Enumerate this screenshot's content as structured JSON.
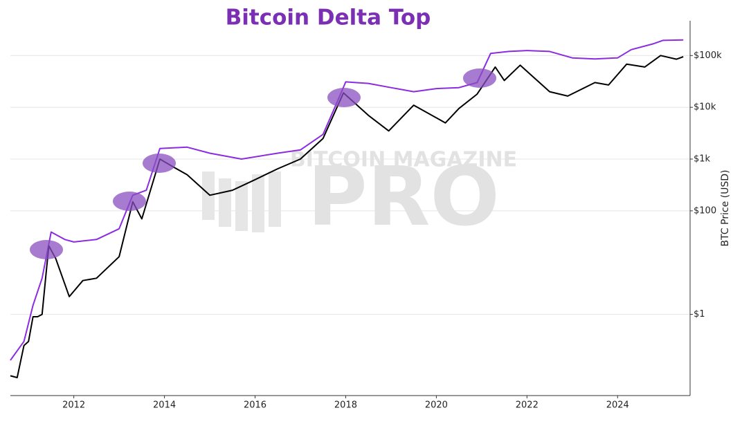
{
  "chart_data": {
    "type": "line",
    "title": "Bitcoin Delta Top",
    "watermark": [
      "BITCOIN MAGAZINE",
      "PRO"
    ],
    "y_label": "BTC Price (USD)",
    "log_y": true,
    "grid": true,
    "xlim": [
      2010.6,
      2025.6
    ],
    "xticks": [
      2012,
      2014,
      2016,
      2018,
      2020,
      2022,
      2024
    ],
    "ylim": [
      0.027,
      470000
    ],
    "yticks": [
      {
        "value": 1,
        "label": "$1"
      },
      {
        "value": 100,
        "label": "$100"
      },
      {
        "value": 1000,
        "label": "$1k"
      },
      {
        "value": 10000,
        "label": "$10k"
      },
      {
        "value": 100000,
        "label": "$100k"
      }
    ],
    "series": [
      {
        "color": "#8a2be2",
        "x": [
          2010.6,
          2010.9,
          2011.1,
          2011.3,
          2011.5,
          2011.8,
          2012.0,
          2012.5,
          2013.0,
          2013.3,
          2013.6,
          2013.9,
          2014.5,
          2015.0,
          2015.7,
          2016.5,
          2017.0,
          2017.5,
          2017.8,
          2018.0,
          2018.5,
          2019.0,
          2019.5,
          2020.0,
          2020.5,
          2020.9,
          2021.2,
          2021.6,
          2022.0,
          2022.5,
          2023.0,
          2023.5,
          2024.0,
          2024.3,
          2024.8,
          2025.0,
          2025.45
        ],
        "values": [
          0.13,
          0.3,
          1.5,
          5,
          39,
          28,
          25,
          28,
          45,
          200,
          250,
          1600,
          1700,
          1300,
          1000,
          1300,
          1500,
          3000,
          12000,
          31000,
          29000,
          24000,
          20000,
          23000,
          24000,
          30000,
          110000,
          120000,
          125000,
          120000,
          90000,
          86000,
          90000,
          130000,
          170000,
          196000,
          200000
        ]
      },
      {
        "color": "#000000",
        "x": [
          2010.6,
          2010.75,
          2010.9,
          2011.0,
          2011.1,
          2011.2,
          2011.3,
          2011.4,
          2011.45,
          2011.6,
          2011.9,
          2012.2,
          2012.5,
          2013.0,
          2013.3,
          2013.5,
          2013.9,
          2014.2,
          2014.5,
          2015.0,
          2015.5,
          2016.0,
          2016.5,
          2017.0,
          2017.5,
          2017.95,
          2018.5,
          2018.95,
          2019.5,
          2020.2,
          2020.5,
          2020.9,
          2021.3,
          2021.5,
          2021.85,
          2022.5,
          2022.9,
          2023.5,
          2023.8,
          2024.2,
          2024.6,
          2024.95,
          2025.3,
          2025.45
        ],
        "values": [
          0.065,
          0.06,
          0.25,
          0.3,
          0.9,
          0.9,
          1,
          8,
          21,
          12,
          2.2,
          4.5,
          5,
          13,
          150,
          70,
          1000,
          700,
          500,
          200,
          250,
          400,
          650,
          1000,
          2500,
          19000,
          7000,
          3500,
          11000,
          5000,
          9500,
          18000,
          60000,
          33000,
          65000,
          20000,
          16500,
          30000,
          27000,
          68000,
          60000,
          100000,
          85000,
          95000
        ]
      }
    ]
  }
}
